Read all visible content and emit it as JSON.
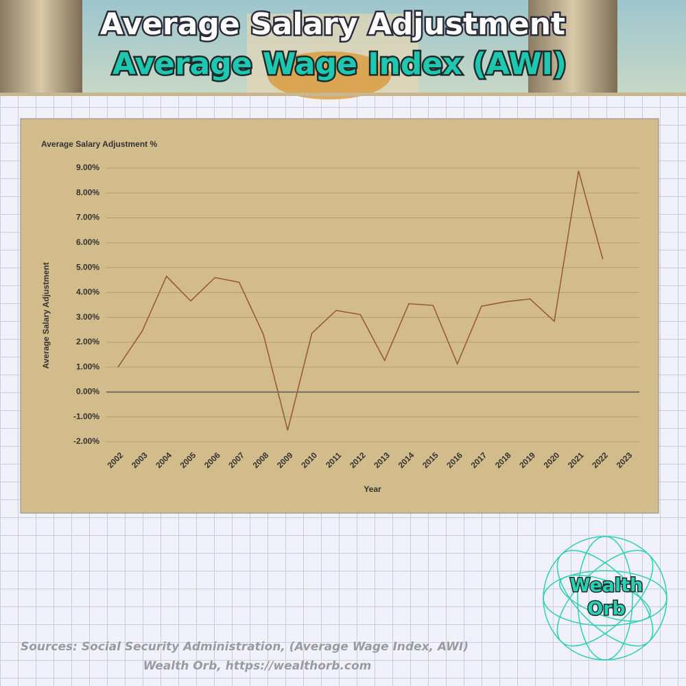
{
  "header": {
    "title": "Average Salary Adjustment",
    "subtitle": "Average Wage Index (AWI)"
  },
  "chart_data": {
    "type": "line",
    "title": "Average Salary Adjustment %",
    "x_label": "Year",
    "y_label": "Average Salary Adjustment",
    "categories": [
      "2002",
      "2003",
      "2004",
      "2005",
      "2006",
      "2007",
      "2008",
      "2009",
      "2010",
      "2011",
      "2012",
      "2013",
      "2014",
      "2015",
      "2016",
      "2017",
      "2018",
      "2019",
      "2020",
      "2021",
      "2022",
      "2023"
    ],
    "series": [
      {
        "name": "Average Salary Adjustment",
        "color": "#9a5a36",
        "values": [
          1.0,
          2.45,
          4.65,
          3.66,
          4.6,
          4.41,
          2.31,
          -1.54,
          2.36,
          3.28,
          3.11,
          1.27,
          3.55,
          3.48,
          1.13,
          3.45,
          3.63,
          3.74,
          2.84,
          8.89,
          5.34,
          null
        ]
      }
    ],
    "ylim": [
      -2,
      9
    ],
    "yticks": [
      {
        "value": -2,
        "label": "-2.00%"
      },
      {
        "value": -1,
        "label": "-1.00%"
      },
      {
        "value": 0,
        "label": "0.00%"
      },
      {
        "value": 1,
        "label": "1.00%"
      },
      {
        "value": 2,
        "label": "2.00%"
      },
      {
        "value": 3,
        "label": "3.00%"
      },
      {
        "value": 4,
        "label": "4.00%"
      },
      {
        "value": 5,
        "label": "5.00%"
      },
      {
        "value": 6,
        "label": "6.00%"
      },
      {
        "value": 7,
        "label": "7.00%"
      },
      {
        "value": 8,
        "label": "8.00%"
      },
      {
        "value": 9,
        "label": "9.00%"
      }
    ],
    "grid": true
  },
  "logo": {
    "line1": "Wealth",
    "line2": "Orb"
  },
  "footer": {
    "sources": "Sources: Social Security Administration, (Average Wage Index, AWI)",
    "credit": "Wealth Orb, https://wealthorb.com"
  }
}
